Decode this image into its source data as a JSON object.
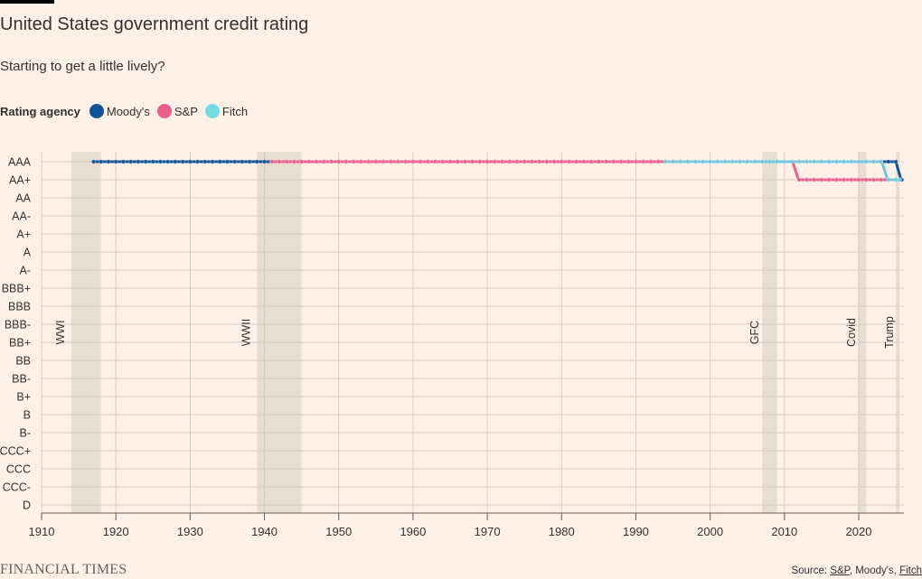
{
  "title": "United States government credit rating",
  "subtitle": "Starting to get a little lively?",
  "legend_title": "Rating agency",
  "source": {
    "prefix": "Source: ",
    "links": [
      "S&P",
      "Moody's",
      "Fitch"
    ]
  },
  "logo": "FINANCIAL TIMES",
  "chart_data": {
    "type": "line",
    "xlim": [
      1910,
      2026
    ],
    "x_ticks": [
      1910,
      1920,
      1930,
      1940,
      1950,
      1960,
      1970,
      1980,
      1990,
      2000,
      2010,
      2020
    ],
    "y_categories": [
      "AAA",
      "AA+",
      "AA",
      "AA-",
      "A+",
      "A",
      "A-",
      "BBB+",
      "BBB",
      "BBB-",
      "BB+",
      "BB",
      "BB-",
      "B+",
      "B",
      "B-",
      "CCC+",
      "CCC",
      "CCC-",
      "D"
    ],
    "shaded_periods": [
      {
        "label": "WWI",
        "start": 1914,
        "end": 1918
      },
      {
        "label": "WWII",
        "start": 1939,
        "end": 1945
      },
      {
        "label": "GFC",
        "start": 2007,
        "end": 2009
      },
      {
        "label": "Covid",
        "start": 2020,
        "end": 2021
      },
      {
        "label": "Trump",
        "start": 2025,
        "end": 2025.4
      }
    ],
    "series": [
      {
        "name": "Moody's",
        "color": "#0f5499",
        "start": 1917,
        "end": 2025.8,
        "changes": [
          {
            "year": 2025.4,
            "rating": "AA+"
          }
        ]
      },
      {
        "name": "S&P",
        "color": "#eb5e8d",
        "start": 1941,
        "end": 2025.5,
        "changes": [
          {
            "year": 2011.6,
            "rating": "AA+"
          }
        ]
      },
      {
        "name": "Fitch",
        "color": "#70c6da",
        "start": 1994,
        "end": 2025.5,
        "changes": [
          {
            "year": 2023.6,
            "rating": "AA+"
          }
        ]
      }
    ]
  }
}
